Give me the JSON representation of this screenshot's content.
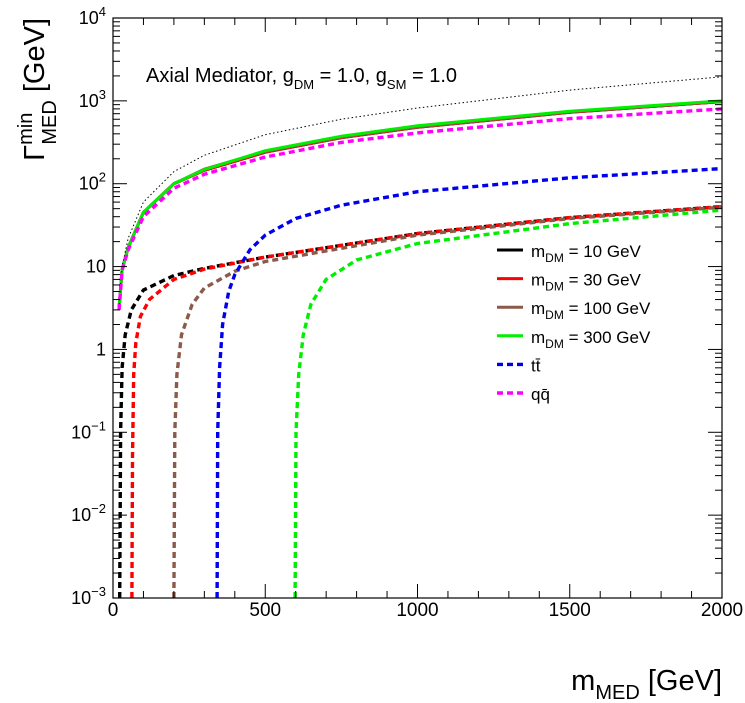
{
  "chart_data": {
    "type": "line",
    "title": {
      "main": "Axial Mediator, g",
      "sub1": "DM",
      "mid": " = 1.0, g",
      "sub2": "SM",
      "end": " = 1.0"
    },
    "xlabel": {
      "main": "m",
      "sub": "MED",
      "unit": " [GeV]"
    },
    "ylabel": {
      "main": "Γ",
      "sup": "min",
      "sub": "MED",
      "unit": " [GeV]"
    },
    "xlim": [
      0,
      2000
    ],
    "ylim": [
      0.001,
      10000
    ],
    "yscale": "log",
    "grid": false,
    "legend_position": "right-middle",
    "x_ticks": [
      {
        "value": 0,
        "label": "0"
      },
      {
        "value": 500,
        "label": "500"
      },
      {
        "value": 1000,
        "label": "1000"
      },
      {
        "value": 1500,
        "label": "1500"
      },
      {
        "value": 2000,
        "label": "2000"
      }
    ],
    "y_ticks": [
      {
        "value": 10000,
        "base": "10",
        "exp": "4"
      },
      {
        "value": 1000,
        "base": "10",
        "exp": "3"
      },
      {
        "value": 100,
        "base": "10",
        "exp": "2"
      },
      {
        "value": 10,
        "base": "10",
        "exp": ""
      },
      {
        "value": 1,
        "base": "1",
        "exp": ""
      },
      {
        "value": 0.1,
        "base": "10",
        "exp": "−1"
      },
      {
        "value": 0.01,
        "base": "10",
        "exp": "−2"
      },
      {
        "value": 0.001,
        "base": "10",
        "exp": "−3"
      }
    ],
    "series": [
      {
        "key": "total_10",
        "color": "#000000",
        "style": "solid",
        "x": [
          20,
          30,
          50,
          100,
          200,
          300,
          500,
          750,
          1000,
          1500,
          2000
        ],
        "y": [
          3.2,
          9.2,
          17,
          45,
          100,
          145,
          240,
          360,
          480,
          730,
          980
        ]
      },
      {
        "key": "total_30",
        "color": "#ff0000",
        "style": "solid",
        "x": [
          20,
          30,
          50,
          100,
          200,
          300,
          500,
          750,
          1000,
          1500,
          2000
        ],
        "y": [
          3.2,
          9.2,
          17,
          45,
          100,
          145,
          240,
          360,
          480,
          730,
          980
        ]
      },
      {
        "key": "total_100",
        "color": "#8b5a4a",
        "style": "solid",
        "x": [
          20,
          30,
          50,
          100,
          200,
          300,
          500,
          750,
          1000,
          1500,
          2000
        ],
        "y": [
          3.2,
          9.2,
          17,
          45,
          100,
          150,
          245,
          365,
          485,
          735,
          985
        ]
      },
      {
        "key": "total_300",
        "color": "#00ee00",
        "style": "solid",
        "x": [
          20,
          30,
          50,
          100,
          200,
          300,
          500,
          750,
          1000,
          1500,
          2000
        ],
        "y": [
          3.2,
          9.2,
          17,
          45,
          100,
          148,
          250,
          375,
          500,
          750,
          1000
        ]
      },
      {
        "key": "upper_bound",
        "color": "#000000",
        "style": "dotted-thin",
        "x": [
          20,
          30,
          50,
          100,
          200,
          300,
          500,
          750,
          1000,
          1500,
          2000
        ],
        "y": [
          3.5,
          10,
          22,
          60,
          140,
          220,
          390,
          600,
          820,
          1350,
          1950
        ]
      },
      {
        "key": "dm_10",
        "color": "#000000",
        "style": "dashed",
        "x": [
          22,
          25,
          30,
          40,
          60,
          100,
          200,
          300,
          500,
          1000,
          1500,
          2000
        ],
        "y": [
          0.001,
          0.1,
          0.6,
          1.5,
          3,
          5.2,
          7.8,
          9.5,
          13,
          25,
          39,
          53
        ]
      },
      {
        "key": "dm_30",
        "color": "#ff0000",
        "style": "dashed",
        "x": [
          62,
          64,
          68,
          75,
          90,
          120,
          200,
          300,
          500,
          1000,
          1500,
          2000
        ],
        "y": [
          0.001,
          0.05,
          0.5,
          1.2,
          2.5,
          4,
          7,
          9.3,
          13,
          25,
          39,
          53
        ]
      },
      {
        "key": "dm_100",
        "color": "#8b5a4a",
        "style": "dashed",
        "x": [
          200,
          203,
          210,
          225,
          260,
          300,
          400,
          500,
          1000,
          1500,
          2000
        ],
        "y": [
          0.001,
          0.1,
          0.5,
          1.5,
          3.5,
          5.5,
          8.8,
          11.5,
          24,
          38,
          52
        ]
      },
      {
        "key": "ttbar",
        "color": "#0000ee",
        "style": "dashed",
        "x": [
          342,
          344,
          350,
          360,
          380,
          400,
          450,
          500,
          600,
          750,
          1000,
          1500,
          2000
        ],
        "y": [
          0.001,
          0.1,
          0.6,
          2,
          5,
          8,
          16,
          24,
          38,
          55,
          80,
          118,
          152
        ]
      },
      {
        "key": "dm_300",
        "color": "#00ee00",
        "style": "dashed",
        "x": [
          598,
          601,
          610,
          625,
          650,
          700,
          800,
          1000,
          1500,
          2000
        ],
        "y": [
          0.001,
          0.1,
          0.5,
          1.5,
          3.5,
          7,
          12,
          19,
          33,
          48
        ]
      },
      {
        "key": "qqbar",
        "color": "#ff00ff",
        "style": "dashed",
        "x": [
          20,
          30,
          50,
          100,
          200,
          300,
          500,
          750,
          1000,
          1500,
          2000
        ],
        "y": [
          3.0,
          9.0,
          16,
          40,
          88,
          130,
          210,
          315,
          410,
          610,
          800
        ]
      }
    ],
    "legend": [
      {
        "color": "#000000",
        "style": "solid",
        "pre": "m",
        "sub": "DM",
        "post": " = 10 GeV"
      },
      {
        "color": "#ff0000",
        "style": "solid",
        "pre": "m",
        "sub": "DM",
        "post": " = 30 GeV"
      },
      {
        "color": "#8b5a4a",
        "style": "solid",
        "pre": "m",
        "sub": "DM",
        "post": " = 100 GeV"
      },
      {
        "color": "#00ee00",
        "style": "solid",
        "pre": "m",
        "sub": "DM",
        "post": " = 300 GeV"
      },
      {
        "color": "#0000ee",
        "style": "dashed",
        "pre": "tt̄",
        "sub": "",
        "post": ""
      },
      {
        "color": "#ff00ff",
        "style": "dashed",
        "pre": "qq̄",
        "sub": "",
        "post": ""
      }
    ]
  }
}
